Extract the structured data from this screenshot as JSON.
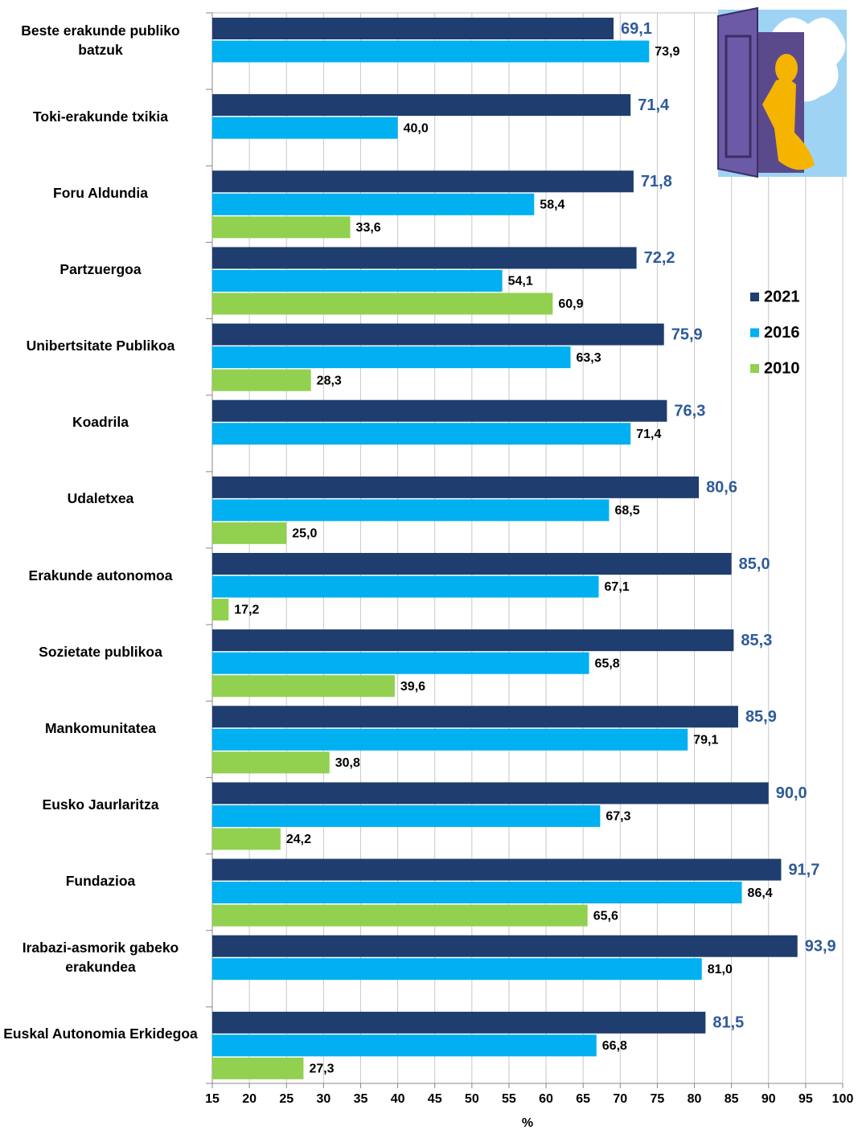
{
  "chart_data": {
    "type": "hbar",
    "categories": [
      "Beste erakunde publiko batzuk",
      "Toki-erakunde txikia",
      "Foru Aldundia",
      "Partzuergoa",
      "Unibertsitate Publikoa",
      "Koadrila",
      "Udaletxea",
      "Erakunde autonomoa",
      "Sozietate publikoa",
      "Mankomunitatea",
      "Eusko Jaurlaritza",
      "Fundazioa",
      "Irabazi-asmorik gabeko erakundea",
      "Euskal Autonomia Erkidegoa"
    ],
    "series": [
      {
        "name": "2021",
        "color": "#1f3d6e",
        "values": [
          69.1,
          71.4,
          71.8,
          72.2,
          75.9,
          76.3,
          80.6,
          85.0,
          85.3,
          85.9,
          90.0,
          91.7,
          93.9,
          81.5
        ],
        "value_labels": [
          "69,1",
          "71,4",
          "71,8",
          "72,2",
          "75,9",
          "76,3",
          "80,6",
          "85,0",
          "85,3",
          "85,9",
          "90,0",
          "91,7",
          "93,9",
          "81,5"
        ]
      },
      {
        "name": "2016",
        "color": "#00b0f0",
        "values": [
          73.9,
          40.0,
          58.4,
          54.1,
          63.3,
          71.4,
          68.5,
          67.1,
          65.8,
          79.1,
          67.3,
          86.4,
          81.0,
          66.8
        ],
        "value_labels": [
          "73,9",
          "40,0",
          "58,4",
          "54,1",
          "63,3",
          "71,4",
          "68,5",
          "67,1",
          "65,8",
          "79,1",
          "67,3",
          "86,4",
          "81,0",
          "66,8"
        ]
      },
      {
        "name": "2010",
        "color": "#92d050",
        "values": [
          null,
          null,
          33.6,
          60.9,
          28.3,
          null,
          25.0,
          17.2,
          39.6,
          30.8,
          24.2,
          65.6,
          null,
          27.3
        ],
        "value_labels": [
          null,
          null,
          "33,6",
          "60,9",
          "28,3",
          null,
          "25,0",
          "17,2",
          "39,6",
          "30,8",
          "24,2",
          "65,6",
          null,
          "27,3"
        ]
      }
    ],
    "x_label": "%",
    "xlim": [
      15,
      100
    ],
    "xticks": [
      15,
      20,
      25,
      30,
      35,
      40,
      45,
      50,
      55,
      60,
      65,
      70,
      75,
      80,
      85,
      90,
      95,
      100
    ],
    "grid": true
  }
}
